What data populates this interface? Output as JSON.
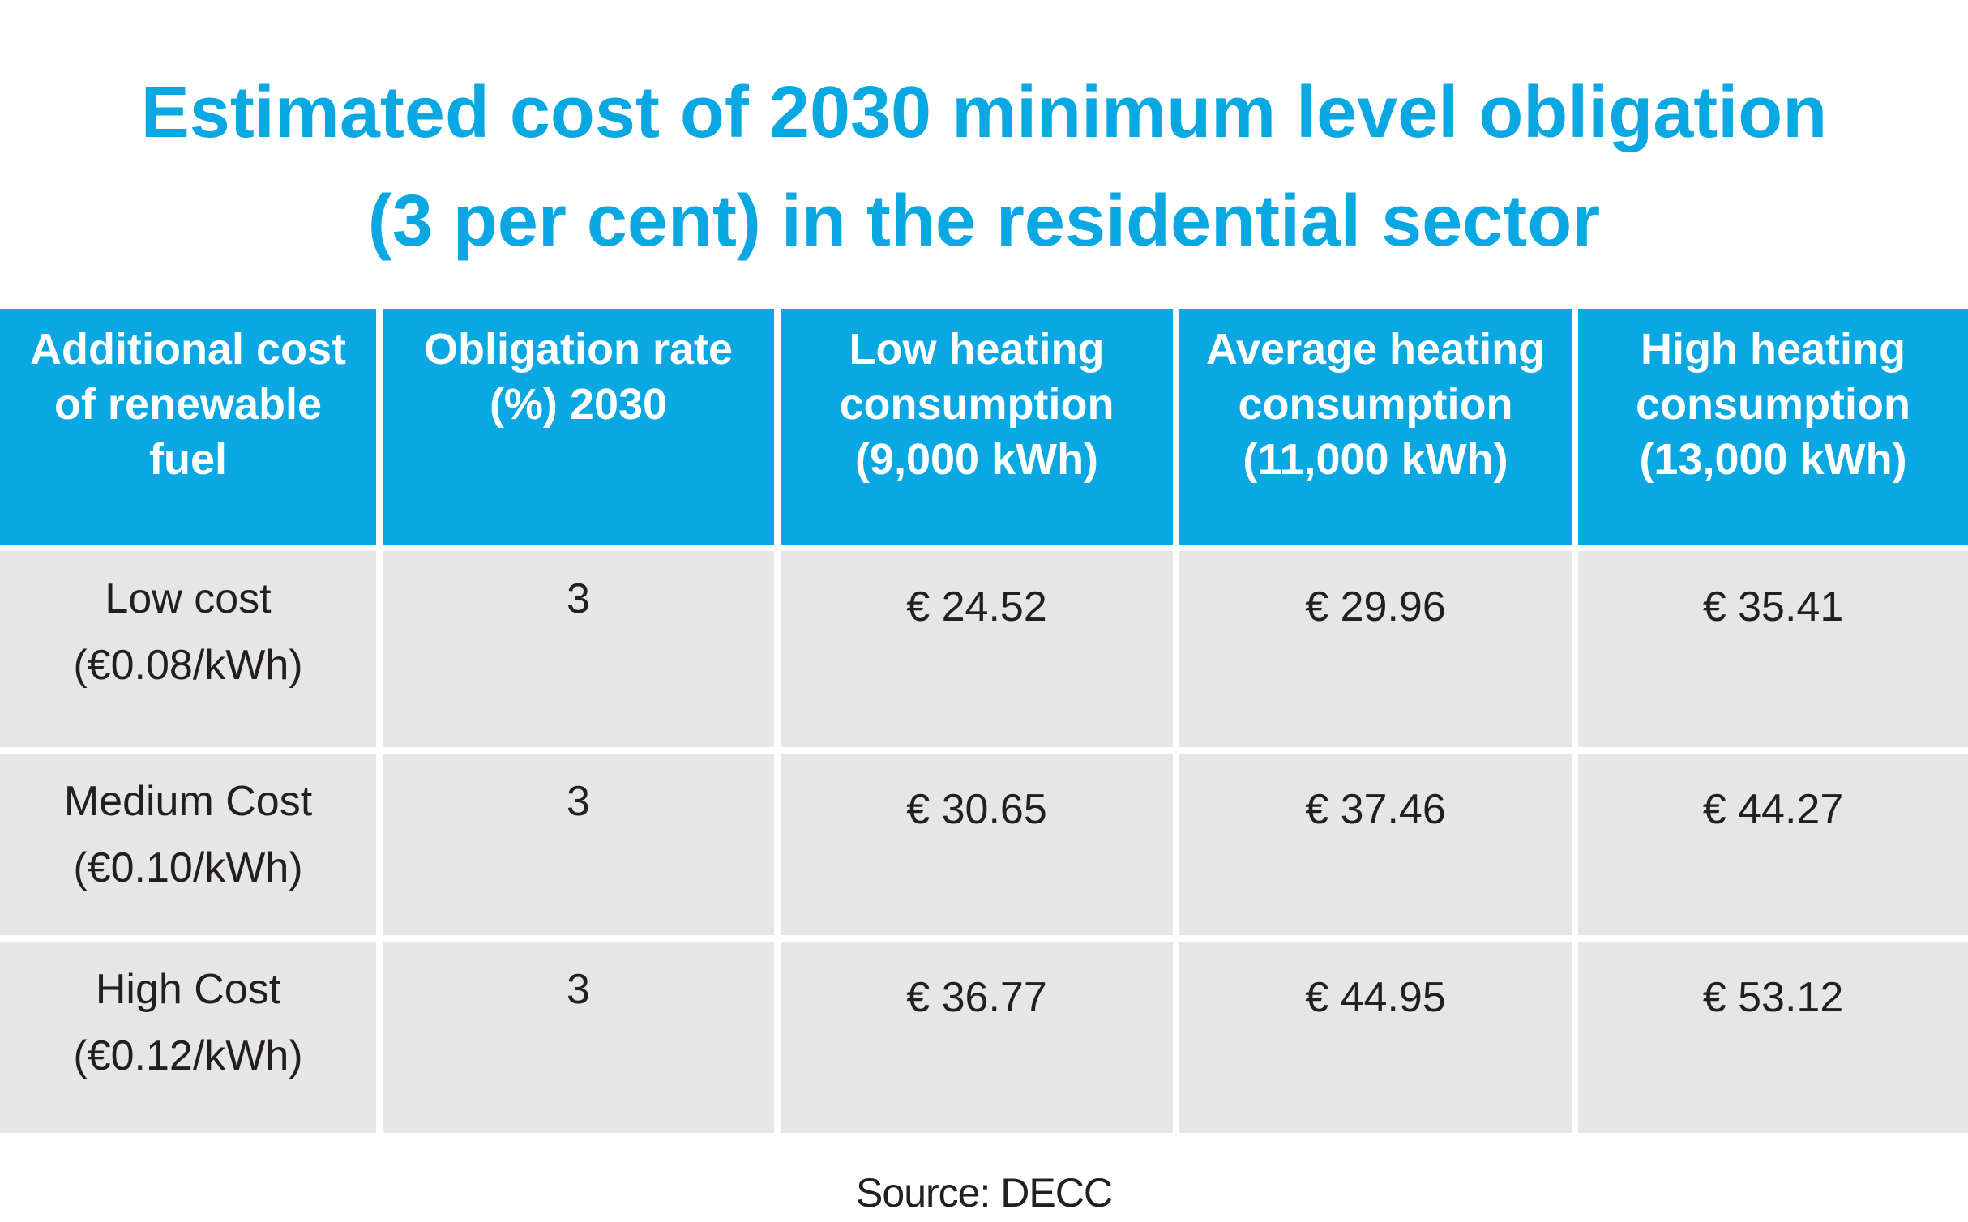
{
  "title": {
    "line1": "Estimated cost of 2030 minimum level obligation",
    "line2": "(3 per cent) in the residential sector"
  },
  "table": {
    "headers": [
      {
        "lines": [
          "Additional cost",
          "of renewable",
          "fuel"
        ]
      },
      {
        "lines": [
          "Obligation rate",
          "(%) 2030"
        ]
      },
      {
        "lines": [
          "Low heating",
          "consumption",
          "(9,000 kWh)"
        ]
      },
      {
        "lines": [
          "Average heating",
          "consumption",
          "(11,000 kWh)"
        ]
      },
      {
        "lines": [
          "High heating",
          "consumption",
          "(13,000 kWh)"
        ]
      }
    ],
    "rows": [
      {
        "label": [
          "Low cost",
          "(€0.08/kWh)"
        ],
        "rate": "3",
        "low": "€ 24.52",
        "average": "€ 29.96",
        "high": "€ 35.41"
      },
      {
        "label": [
          "Medium Cost",
          "(€0.10/kWh)"
        ],
        "rate": "3",
        "low": "€ 30.65",
        "average": "€ 37.46",
        "high": "€ 44.27"
      },
      {
        "label": [
          "High Cost",
          "(€0.12/kWh)"
        ],
        "rate": "3",
        "low": "€ 36.77",
        "average": "€ 44.95",
        "high": "€ 53.12"
      }
    ]
  },
  "source": "Source: DECC",
  "colors": {
    "accent": "#0aa8e2",
    "row_background": "#e6e6e6",
    "text": "#231f20"
  }
}
